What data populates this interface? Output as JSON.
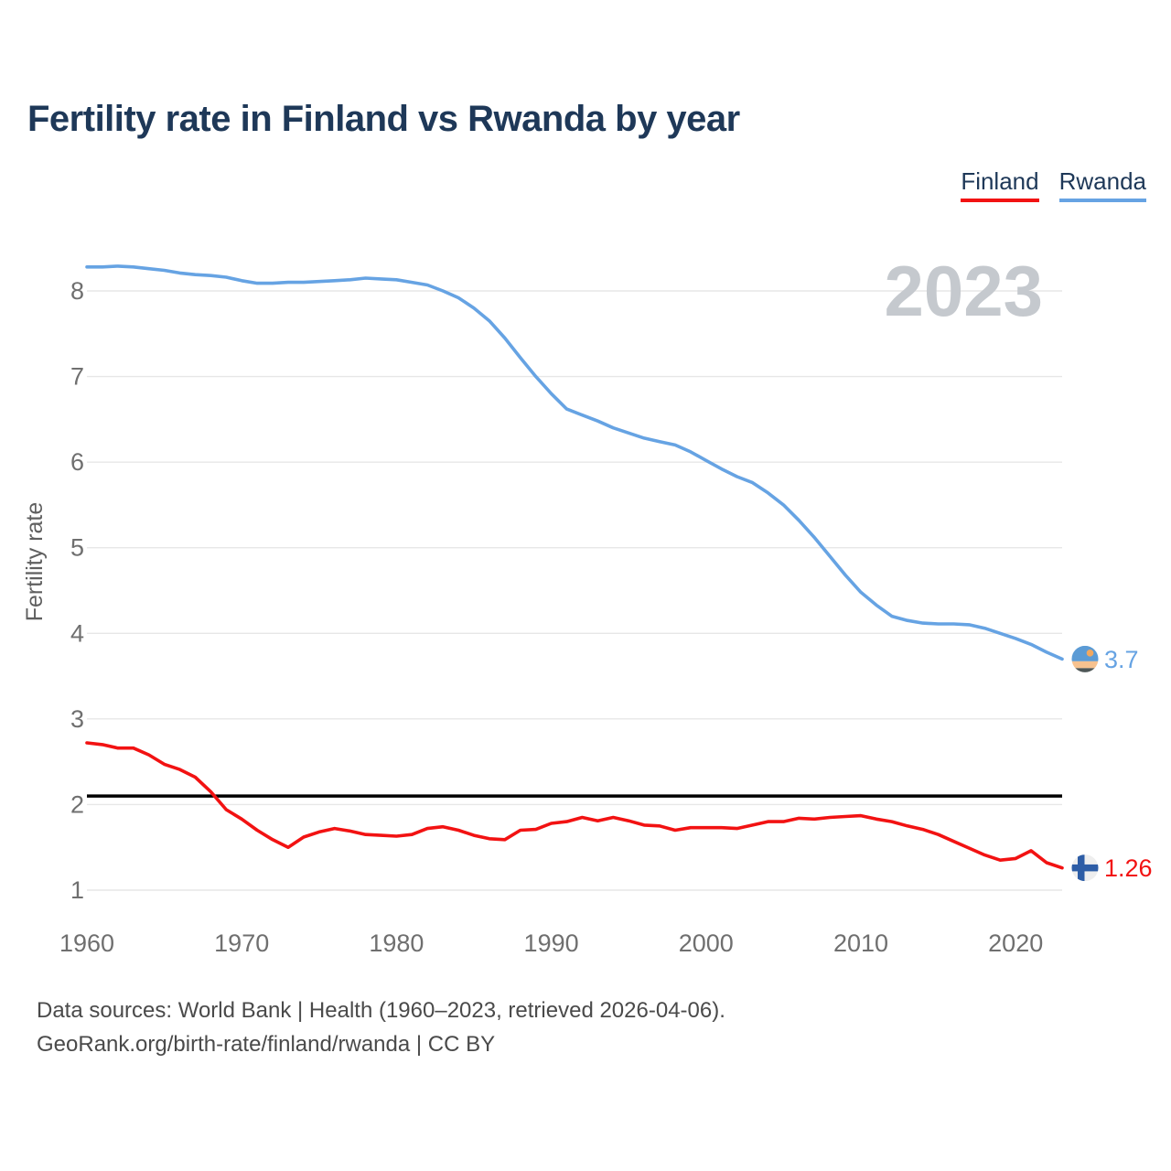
{
  "header": {
    "title": "Fertility rate in Finland vs Rwanda by year"
  },
  "legend": {
    "items": [
      {
        "label": "Finland",
        "color": "#f21212"
      },
      {
        "label": "Rwanda",
        "color": "#66a3e3"
      }
    ]
  },
  "footer": {
    "line1": "Data sources: World Bank | Health (1960–2023, retrieved 2026-04-06).",
    "line2": "GeoRank.org/birth-rate/finland/rwanda | CC BY"
  },
  "chart_data": {
    "type": "line",
    "title": "Fertility rate in Finland vs Rwanda by year",
    "xlabel": "",
    "ylabel": "Fertility rate",
    "watermark": "2023",
    "grid": "horizontal",
    "legend_position": "top-right",
    "x_ticks": [
      1960,
      1970,
      1980,
      1990,
      2000,
      2010,
      2020
    ],
    "y_ticks": [
      1,
      2,
      3,
      4,
      5,
      6,
      7,
      8
    ],
    "ylim": [
      1,
      8.4
    ],
    "xlim": [
      1960,
      2023
    ],
    "reference_line": {
      "value": 2.1,
      "color": "#000000"
    },
    "x": [
      1960,
      1961,
      1962,
      1963,
      1964,
      1965,
      1966,
      1967,
      1968,
      1969,
      1970,
      1971,
      1972,
      1973,
      1974,
      1975,
      1976,
      1977,
      1978,
      1979,
      1980,
      1981,
      1982,
      1983,
      1984,
      1985,
      1986,
      1987,
      1988,
      1989,
      1990,
      1991,
      1992,
      1993,
      1994,
      1995,
      1996,
      1997,
      1998,
      1999,
      2000,
      2001,
      2002,
      2003,
      2004,
      2005,
      2006,
      2007,
      2008,
      2009,
      2010,
      2011,
      2012,
      2013,
      2014,
      2015,
      2016,
      2017,
      2018,
      2019,
      2020,
      2021,
      2022,
      2023
    ],
    "series": [
      {
        "name": "Finland",
        "color": "#f21212",
        "end_value": 1.26,
        "end_label": "1.26",
        "flag_icon": "finland-flag-icon",
        "flag_colors": {
          "background": "#eeeeee",
          "cross": "#2d5da6"
        },
        "values": [
          2.72,
          2.7,
          2.66,
          2.66,
          2.58,
          2.47,
          2.41,
          2.32,
          2.15,
          1.94,
          1.83,
          1.7,
          1.59,
          1.5,
          1.62,
          1.68,
          1.72,
          1.69,
          1.65,
          1.64,
          1.63,
          1.65,
          1.72,
          1.74,
          1.7,
          1.64,
          1.6,
          1.59,
          1.7,
          1.71,
          1.78,
          1.8,
          1.85,
          1.81,
          1.85,
          1.81,
          1.76,
          1.75,
          1.7,
          1.73,
          1.73,
          1.73,
          1.72,
          1.76,
          1.8,
          1.8,
          1.84,
          1.83,
          1.85,
          1.86,
          1.87,
          1.83,
          1.8,
          1.75,
          1.71,
          1.65,
          1.57,
          1.49,
          1.41,
          1.35,
          1.37,
          1.46,
          1.32,
          1.26
        ]
      },
      {
        "name": "Rwanda",
        "color": "#66a3e3",
        "end_value": 3.7,
        "end_label": "3.7",
        "flag_icon": "rwanda-flag-icon",
        "flag_colors": {
          "top": "#5b9bd5",
          "sun": "#f2a85f",
          "middle": "#f7c28f",
          "bottom": "#4e5757"
        },
        "values": [
          8.28,
          8.28,
          8.29,
          8.28,
          8.26,
          8.24,
          8.21,
          8.19,
          8.18,
          8.16,
          8.12,
          8.09,
          8.09,
          8.1,
          8.1,
          8.11,
          8.12,
          8.13,
          8.15,
          8.14,
          8.13,
          8.1,
          8.07,
          8.0,
          7.92,
          7.8,
          7.65,
          7.45,
          7.22,
          7.0,
          6.8,
          6.62,
          6.55,
          6.48,
          6.4,
          6.34,
          6.28,
          6.24,
          6.2,
          6.12,
          6.02,
          5.92,
          5.83,
          5.76,
          5.64,
          5.5,
          5.32,
          5.12,
          4.9,
          4.68,
          4.48,
          4.33,
          4.2,
          4.15,
          4.12,
          4.11,
          4.11,
          4.1,
          4.06,
          4.0,
          3.94,
          3.87,
          3.78,
          3.7
        ]
      }
    ]
  }
}
